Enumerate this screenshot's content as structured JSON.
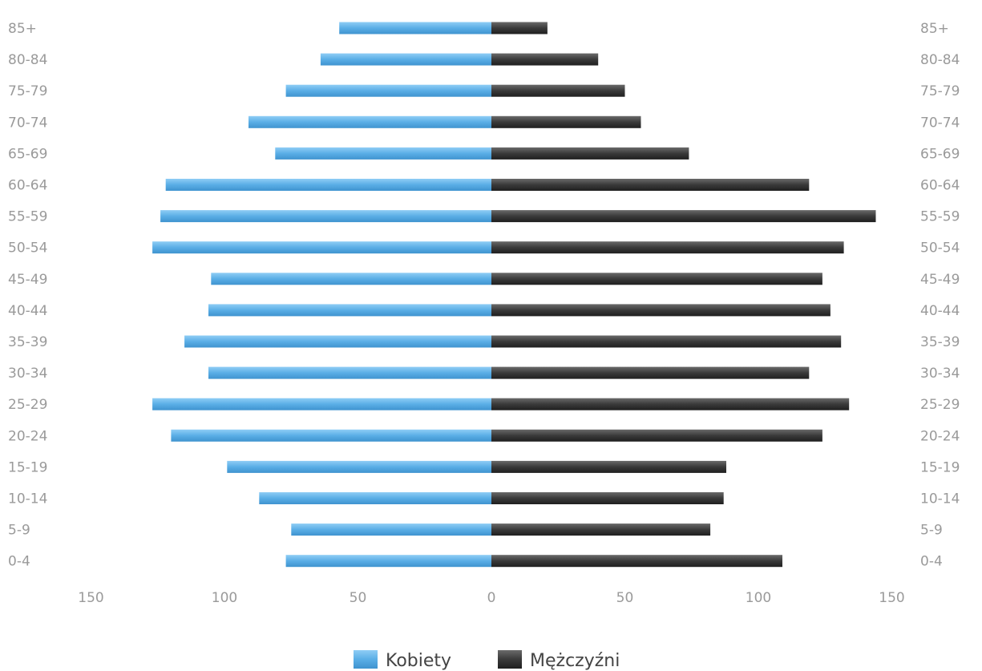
{
  "chart_data": {
    "type": "bar",
    "orientation": "horizontal",
    "subtype": "population-pyramid",
    "title": "",
    "xlabel": "",
    "ylabel": "",
    "categories": [
      "85+",
      "80-84",
      "75-79",
      "70-74",
      "65-69",
      "60-64",
      "55-59",
      "50-54",
      "45-49",
      "40-44",
      "35-39",
      "30-34",
      "25-29",
      "20-24",
      "15-19",
      "10-14",
      "5-9",
      "0-4"
    ],
    "series": [
      {
        "name": "Kobiety",
        "color": "#5aaee6",
        "values": [
          57,
          64,
          77,
          91,
          81,
          122,
          124,
          127,
          105,
          106,
          115,
          106,
          127,
          120,
          99,
          87,
          75,
          77
        ]
      },
      {
        "name": "Mężczyźni",
        "color": "#3a3a3a",
        "values": [
          21,
          40,
          50,
          56,
          74,
          119,
          144,
          132,
          124,
          127,
          131,
          119,
          134,
          124,
          88,
          87,
          82,
          109
        ]
      }
    ],
    "xlim": [
      -150,
      150
    ],
    "x_ticks": [
      {
        "value": -150,
        "label": "150"
      },
      {
        "value": -100,
        "label": "100"
      },
      {
        "value": -50,
        "label": "50"
      },
      {
        "value": 0,
        "label": "0"
      },
      {
        "value": 50,
        "label": "50"
      },
      {
        "value": 100,
        "label": "100"
      },
      {
        "value": 150,
        "label": "150"
      }
    ],
    "grid": false,
    "legend_position": "bottom-center"
  }
}
